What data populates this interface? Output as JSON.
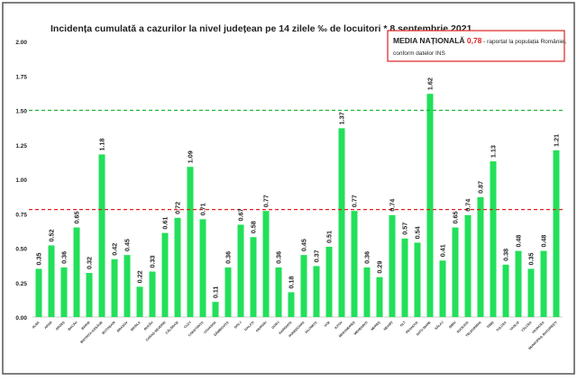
{
  "chart_data": {
    "type": "bar",
    "title": "Incidența cumulată a cazurilor la nivel județean pe 14 zilele ‰ de locuitori * 8 septembrie 2021",
    "xlabel": "",
    "ylabel": "",
    "ylim": [
      0,
      2
    ],
    "yticks": [
      "0.00",
      "0.25",
      "0.50",
      "0.75",
      "1.00",
      "1.25",
      "1.50",
      "1.75",
      "2.00"
    ],
    "grid": false,
    "bar_color": "#22e05a",
    "categories": [
      "ALBA",
      "ARAD",
      "ARGEȘ",
      "BACĂU",
      "BIHOR",
      "BISTRIȚA-NĂSĂUD",
      "BOTOȘANI",
      "BRAȘOV",
      "BRĂILA",
      "BUZĂU",
      "CARAȘ-SEVERIN",
      "CĂLĂRAȘI",
      "CLUJ",
      "CONSTANȚA",
      "COVASNA",
      "DÂMBOVIȚA",
      "DOLJ",
      "GALAȚI",
      "GIURGIU",
      "GORJ",
      "HARGHITA",
      "HUNEDOARA",
      "IALOMIȚA",
      "IAȘI",
      "ILFOV",
      "MARAMUREȘ",
      "MEHEDINȚI",
      "MUREȘ",
      "NEAMȚ",
      "OLT",
      "PRAHOVA",
      "SATU MARE",
      "SĂLAJ",
      "SIBIU",
      "SUCEAVA",
      "TELEORMAN",
      "TIMIȘ",
      "TULCEA",
      "VASLUI",
      "VÂLCEA",
      "VRANCEA",
      "MUNICIPIUL BUCUREȘTI"
    ],
    "values": [
      0.35,
      0.52,
      0.36,
      0.65,
      0.32,
      1.18,
      0.42,
      0.45,
      0.22,
      0.33,
      0.61,
      0.72,
      1.09,
      0.71,
      0.11,
      0.36,
      0.67,
      0.58,
      0.77,
      0.36,
      0.18,
      0.45,
      0.37,
      0.51,
      1.37,
      0.77,
      0.36,
      0.29,
      0.74,
      0.57,
      0.54,
      1.62,
      0.41,
      0.65,
      0.74,
      0.87,
      1.13,
      0.38,
      0.48,
      0.35,
      0.48,
      1.21
    ],
    "value_labels": [
      "0.35",
      "0.52",
      "0.36",
      "0.65",
      "0.32",
      "1.18",
      "0.42",
      "0.45",
      "0.22",
      "0.33",
      "0.61",
      "0.72",
      "1.09",
      "0.71",
      "0.11",
      "0.36",
      "0.67",
      "0.58",
      "0.77",
      "0.36",
      "0.18",
      "0.45",
      "0.37",
      "0.51",
      "1.37",
      "0.77",
      "0.36",
      "0.29",
      "0.74",
      "0.57",
      "0.54",
      "1.62",
      "0.41",
      "0.65",
      "0.74",
      "0.87",
      "1.13",
      "0.38",
      "0.48",
      "0.35",
      "0.48",
      "1.21"
    ],
    "reference_lines": [
      {
        "value": 1.5,
        "color": "#1db33a",
        "style": "dashed"
      },
      {
        "value": 0.78,
        "color": "#e02020",
        "style": "dashed"
      }
    ],
    "annotation": {
      "bold_text": "MEDIA NAȚIONALĂ",
      "value_text": "0,78",
      "rest_line1": " - raportat la populația României,",
      "line2": "conform datelor INS",
      "border_color": "#e02020",
      "value_color": "#e02020"
    }
  }
}
